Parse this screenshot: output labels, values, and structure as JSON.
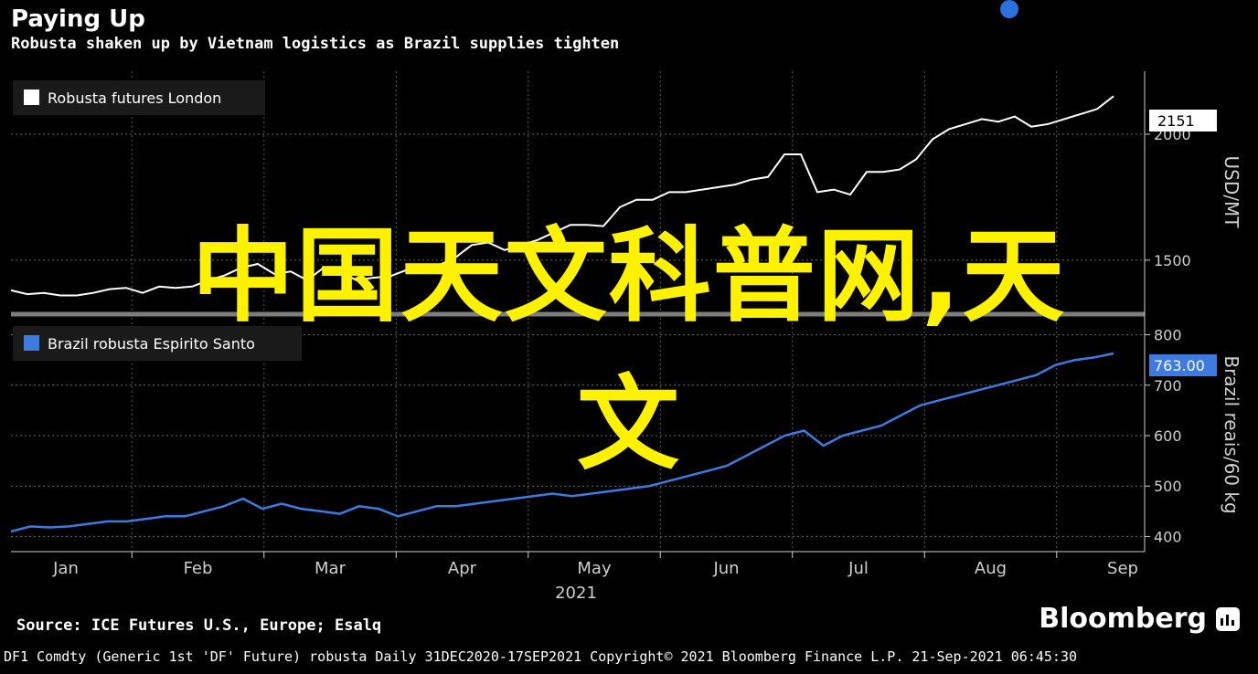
{
  "header": {
    "title": "Paying Up",
    "subtitle": "Robusta shaken up by Vietnam logistics as Brazil supplies tighten"
  },
  "footer": {
    "source": "Source: ICE Futures U.S., Europe; Esalq",
    "brand": "Bloomberg",
    "info": "DF1 Comdty (Generic 1st 'DF' Future) robusta  Daily 31DEC2020-17SEP2021  Copyright© 2021 Bloomberg Finance L.P.  21-Sep-2021 06:45:30"
  },
  "watermark": {
    "line1": "中国天文科普网,天",
    "line2": "文"
  },
  "colors": {
    "background": "#000000",
    "london_series": "#ffffff",
    "brazil_series": "#3d7be0",
    "accent_dot": "#2b6fe0",
    "watermark": "#fff200"
  },
  "chart_data": [
    {
      "type": "line",
      "series": [
        {
          "name": "Robusta futures London",
          "values": [
            1380,
            1365,
            1370,
            1360,
            1360,
            1370,
            1385,
            1390,
            1370,
            1395,
            1390,
            1395,
            1420,
            1440,
            1470,
            1485,
            1445,
            1455,
            1420,
            1470,
            1455,
            1420,
            1430,
            1435,
            1460,
            1470,
            1480,
            1510,
            1560,
            1570,
            1540,
            1560,
            1580,
            1610,
            1640,
            1640,
            1635,
            1710,
            1740,
            1740,
            1770,
            1770,
            1780,
            1790,
            1800,
            1820,
            1830,
            1920,
            1920,
            1770,
            1780,
            1760,
            1850,
            1850,
            1860,
            1900,
            1980,
            2020,
            2040,
            2060,
            2050,
            2070,
            2030,
            2040,
            2060,
            2080,
            2100,
            2151
          ]
        }
      ],
      "unit": "USD/MT",
      "last_value_label": "2151",
      "y_ticks": [
        1500,
        2000
      ],
      "ylim": [
        1300,
        2250
      ]
    },
    {
      "type": "line",
      "series": [
        {
          "name": "Brazil robusta Espirito Santo",
          "values": [
            410,
            420,
            418,
            420,
            425,
            430,
            430,
            435,
            440,
            440,
            450,
            460,
            475,
            455,
            465,
            455,
            450,
            445,
            460,
            455,
            440,
            450,
            460,
            460,
            465,
            470,
            475,
            480,
            485,
            480,
            485,
            490,
            495,
            500,
            510,
            520,
            530,
            540,
            560,
            580,
            600,
            610,
            580,
            600,
            610,
            620,
            640,
            660,
            670,
            680,
            690,
            700,
            710,
            720,
            740,
            750,
            755,
            763
          ]
        }
      ],
      "unit": "Brazil reais/60 kg",
      "last_value_label": "763.00",
      "y_ticks": [
        400,
        500,
        600,
        700,
        800
      ],
      "ylim": [
        370,
        830
      ]
    }
  ],
  "x_axis": {
    "labels": [
      "Jan",
      "Feb",
      "Mar",
      "Apr",
      "May",
      "Jun",
      "Jul",
      "Aug",
      "Sep"
    ],
    "year_label": "2021"
  }
}
